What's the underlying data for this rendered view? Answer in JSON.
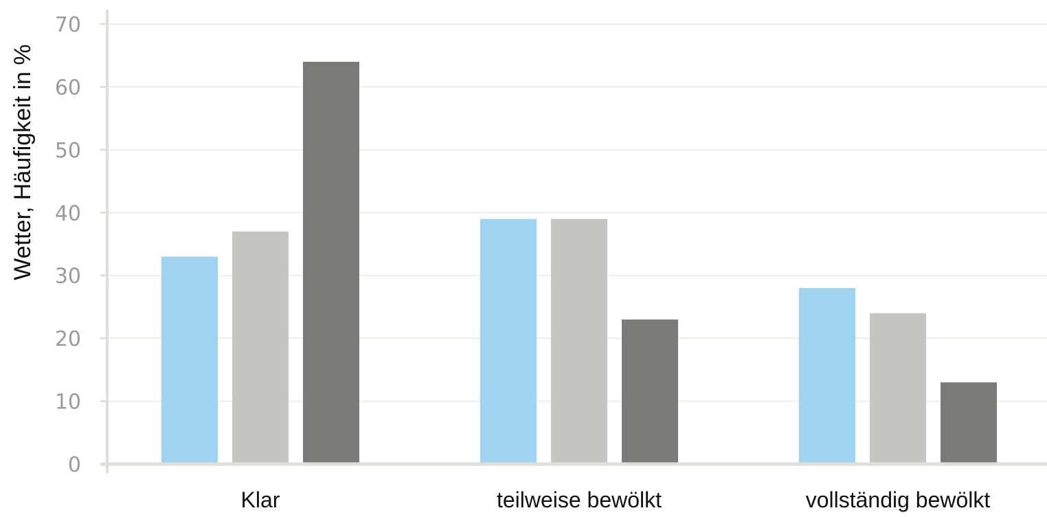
{
  "chart_data": {
    "type": "bar",
    "title": "",
    "xlabel": "",
    "ylabel": "Wetter, Häufigkeit in %",
    "categories": [
      "Klar",
      "teilweise bewölkt",
      "vollständig bewölkt"
    ],
    "series": [
      {
        "values": [
          33,
          39,
          28
        ],
        "color": "#9fd4f1"
      },
      {
        "values": [
          37,
          39,
          24
        ],
        "color": "#c5c5c2"
      },
      {
        "values": [
          64,
          23,
          13
        ],
        "color": "#7a7a78"
      }
    ],
    "ylim": [
      0,
      70
    ],
    "yticks": [
      0,
      10,
      20,
      30,
      40,
      50,
      60,
      70
    ],
    "grid": true,
    "legend": "none",
    "colors": {
      "grid": "#ededeb",
      "axis": "#dededa"
    }
  }
}
